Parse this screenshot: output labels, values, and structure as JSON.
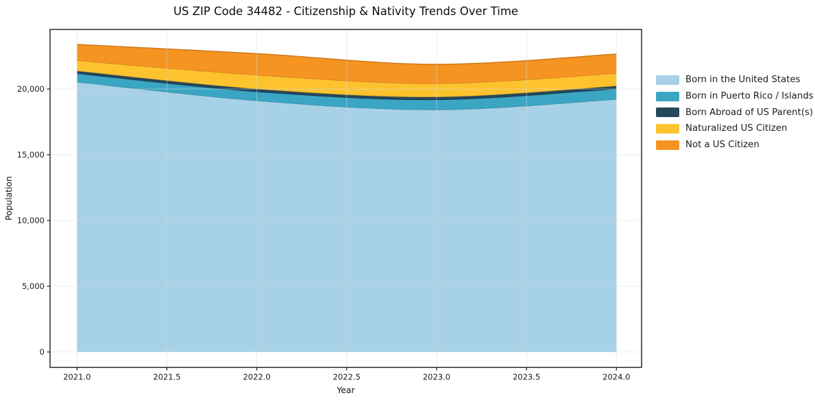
{
  "page": {
    "title": "US ZIP Code 34482 - Citizenship & Nativity Trends Over Time"
  },
  "chart_data": {
    "type": "area",
    "stacked": true,
    "title": "US ZIP Code 34482 - Citizenship & Nativity Trends Over Time",
    "xlabel": "Year",
    "ylabel": "Population",
    "x": [
      2021,
      2022,
      2023,
      2024
    ],
    "series": [
      {
        "name": "Born in the United States",
        "color": "#a6d1e6",
        "values": [
          20550,
          19130,
          18440,
          19230
        ]
      },
      {
        "name": "Born in Puerto Rico / Islands",
        "color": "#3ba6c4",
        "values": [
          640,
          680,
          760,
          800
        ]
      },
      {
        "name": "Born Abroad of US Parent(s)",
        "color": "#24485c",
        "values": [
          210,
          225,
          225,
          230
        ]
      },
      {
        "name": "Naturalized US Citizen",
        "color": "#fcc32e",
        "values": [
          780,
          1045,
          1005,
          950
        ]
      },
      {
        "name": "Not a US Citizen",
        "color": "#f69422",
        "values": [
          1210,
          1610,
          1445,
          1445
        ]
      }
    ],
    "totals": [
      23390,
      22690,
      21875,
      22655
    ],
    "xlim": [
      2020.85,
      2024.14
    ],
    "ylim": [
      -1172,
      24530
    ],
    "x_ticks": [
      2021.0,
      2021.5,
      2022.0,
      2022.5,
      2023.0,
      2023.5,
      2024.0
    ],
    "x_tick_labels": [
      "2021.0",
      "2021.5",
      "2022.0",
      "2022.5",
      "2023.0",
      "2023.5",
      "2024.0"
    ],
    "y_ticks": [
      0,
      5000,
      10000,
      15000,
      20000
    ],
    "y_tick_labels": [
      "0",
      "5,000",
      "10,000",
      "15,000",
      "20,000"
    ],
    "grid": true,
    "legend_position": "right-outside",
    "frame_color": "#1a1a1a",
    "grid_color": "#d9d9d9",
    "tick_label_color": "#1b1b1b"
  }
}
